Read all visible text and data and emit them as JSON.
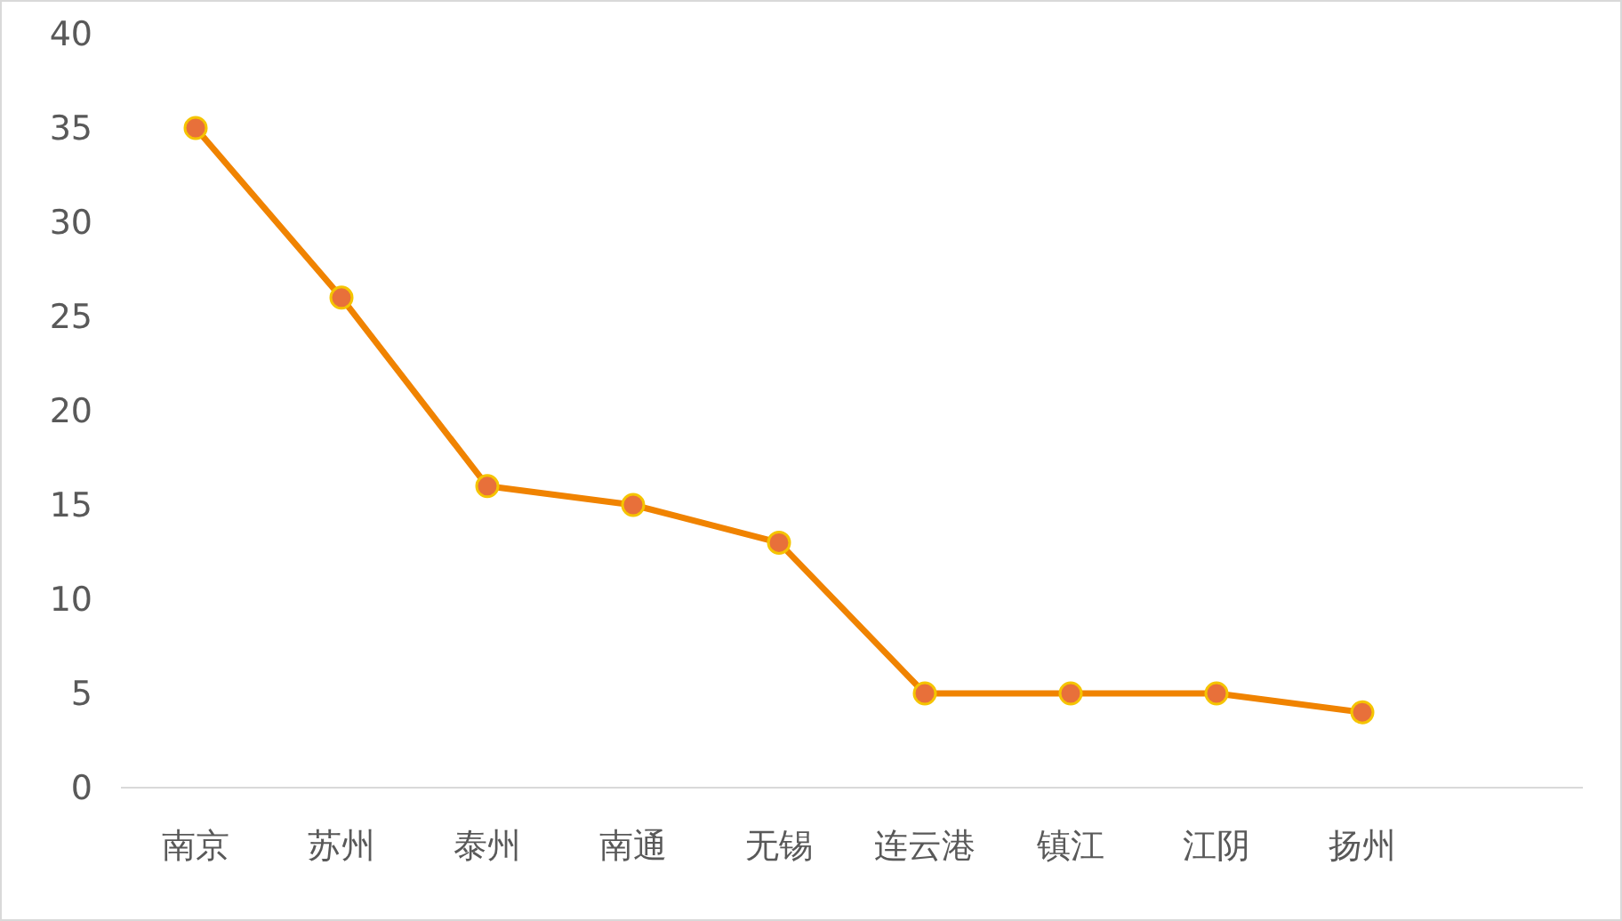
{
  "chart_data": {
    "type": "line",
    "categories": [
      "南京",
      "苏州",
      "泰州",
      "南通",
      "无锡",
      "连云港",
      "镇江",
      "江阴",
      "扬州"
    ],
    "series": [
      {
        "color": "#f08300",
        "values": [
          35,
          26,
          16,
          15,
          13,
          5,
          5,
          5,
          4
        ]
      }
    ],
    "ylim": [
      0,
      40
    ],
    "yticks": [
      0,
      5,
      10,
      15,
      20,
      25,
      30,
      35,
      40
    ],
    "grid": false,
    "marker": "circle",
    "line_style": "solid"
  }
}
